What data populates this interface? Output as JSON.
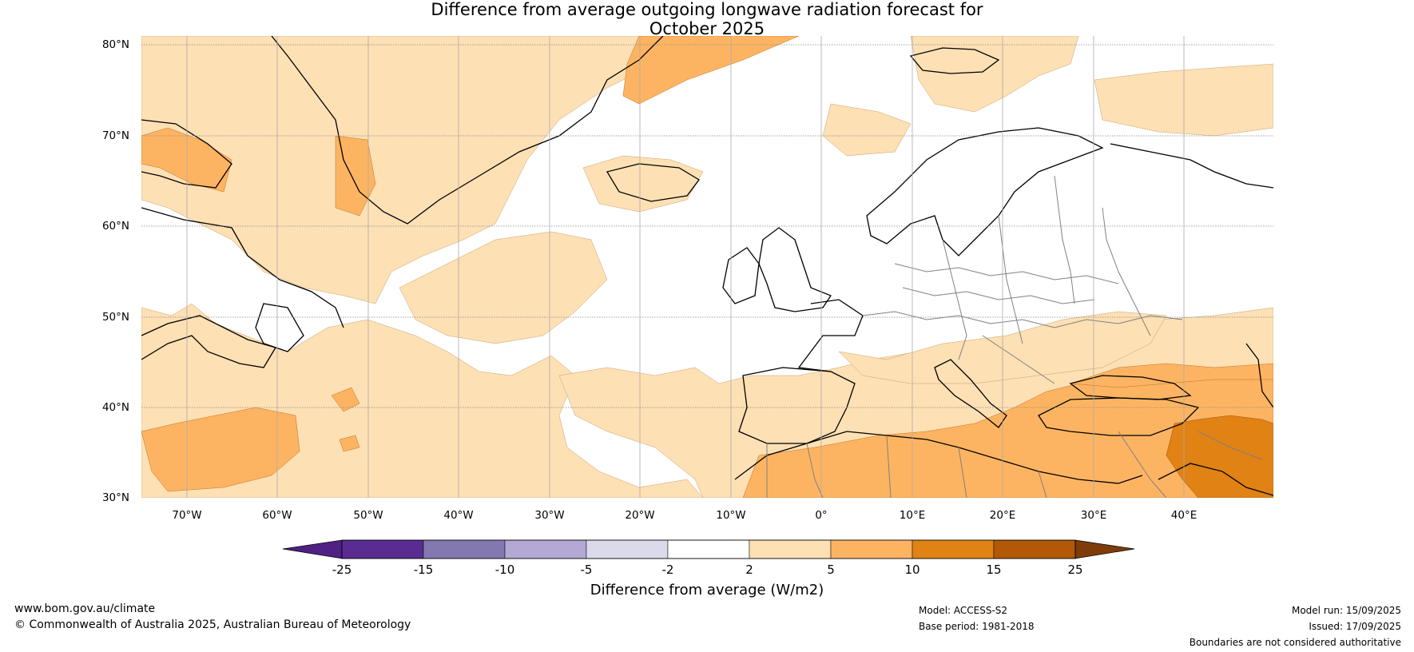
{
  "title": {
    "line1": "Difference from average outgoing longwave radiation forecast for",
    "line2": "October 2025"
  },
  "map": {
    "lat_labels": [
      "80°N",
      "70°N",
      "60°N",
      "50°N",
      "40°N",
      "30°N"
    ],
    "lon_labels": [
      "70°W",
      "60°W",
      "50°W",
      "40°W",
      "30°W",
      "20°W",
      "10°W",
      "0°",
      "10°E",
      "20°E",
      "30°E",
      "40°E"
    ]
  },
  "colorbar": {
    "ticks": [
      "-25",
      "-15",
      "-10",
      "-5",
      "-2",
      "2",
      "5",
      "10",
      "15",
      "25"
    ],
    "colors": [
      "#4f2183",
      "#5a2b90",
      "#8478b0",
      "#b3a9d4",
      "#dadaeb",
      "#ffffff",
      "#fde0b4",
      "#fdb462",
      "#e08214",
      "#b35806",
      "#7f3b08"
    ],
    "label": "Difference from average (W/m2)"
  },
  "footer": {
    "website": "www.bom.gov.au/climate",
    "copyright": "© Commonwealth of Australia 2025, Australian Bureau of Meteorology",
    "model": "Model: ACCESS-S2",
    "base_period": "Base period: 1981-2018",
    "model_run": "Model run: 15/09/2025",
    "issued": "Issued: 17/09/2025",
    "disclaimer": "Boundaries are not considered authoritative"
  }
}
